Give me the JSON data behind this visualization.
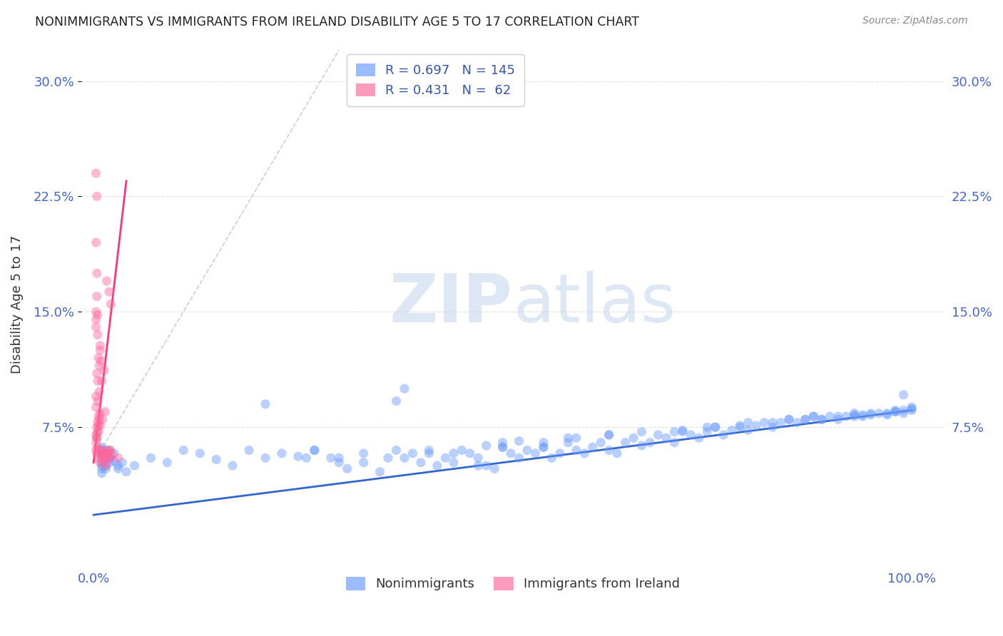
{
  "title": "NONIMMIGRANTS VS IMMIGRANTS FROM IRELAND DISABILITY AGE 5 TO 17 CORRELATION CHART",
  "source": "Source: ZipAtlas.com",
  "ylabel_label": "Disability Age 5 to 17",
  "ylim": [
    -0.015,
    0.325
  ],
  "xlim": [
    -0.015,
    1.04
  ],
  "blue_color": "#6699ff",
  "pink_color": "#ff6699",
  "blue_line_color": "#3366cc",
  "pink_line_color": "#ff3377",
  "grid_color": "#dddddd",
  "background_color": "#ffffff",
  "title_color": "#222222",
  "tick_label_color": "#4466cc",
  "legend_r_blue": "0.697",
  "legend_n_blue": "145",
  "legend_r_pink": "0.431",
  "legend_n_pink": "62",
  "blue_trend_x": [
    0.0,
    1.0
  ],
  "blue_trend_y": [
    0.018,
    0.086
  ],
  "pink_trend_x": [
    0.0,
    0.04
  ],
  "pink_trend_y": [
    0.052,
    0.235
  ],
  "pink_dashed_trend_x": [
    0.0,
    0.3
  ],
  "pink_dashed_trend_y": [
    0.052,
    0.32
  ],
  "blue_scatter_x": [
    0.01,
    0.01,
    0.01,
    0.01,
    0.01,
    0.01,
    0.01,
    0.01,
    0.015,
    0.015,
    0.015,
    0.015,
    0.02,
    0.02,
    0.02,
    0.025,
    0.025,
    0.03,
    0.03,
    0.035,
    0.04,
    0.05,
    0.07,
    0.09,
    0.11,
    0.13,
    0.15,
    0.17,
    0.19,
    0.21,
    0.23,
    0.25,
    0.27,
    0.29,
    0.31,
    0.33,
    0.35,
    0.37,
    0.38,
    0.4,
    0.41,
    0.42,
    0.43,
    0.44,
    0.45,
    0.46,
    0.47,
    0.48,
    0.49,
    0.5,
    0.51,
    0.52,
    0.53,
    0.54,
    0.55,
    0.56,
    0.57,
    0.58,
    0.59,
    0.6,
    0.61,
    0.62,
    0.63,
    0.64,
    0.65,
    0.66,
    0.67,
    0.68,
    0.69,
    0.7,
    0.71,
    0.72,
    0.73,
    0.74,
    0.75,
    0.76,
    0.77,
    0.78,
    0.79,
    0.8,
    0.81,
    0.82,
    0.83,
    0.84,
    0.85,
    0.86,
    0.87,
    0.88,
    0.89,
    0.9,
    0.91,
    0.92,
    0.93,
    0.94,
    0.95,
    0.96,
    0.97,
    0.98,
    0.99,
    1.0,
    0.38,
    0.5,
    0.99,
    0.37,
    0.21,
    0.3,
    0.44,
    0.47,
    0.55,
    0.26,
    0.27,
    0.3,
    0.33,
    0.36,
    0.39,
    0.41,
    0.48,
    0.52,
    0.55,
    0.59,
    0.63,
    0.67,
    0.72,
    0.76,
    0.79,
    0.83,
    0.87,
    0.91,
    0.95,
    0.98,
    1.0,
    0.5,
    0.63,
    0.75,
    0.85,
    0.93,
    0.98,
    1.0,
    0.58,
    0.71,
    0.8,
    0.89,
    0.94,
    0.97,
    0.99,
    0.88,
    0.93
  ],
  "blue_scatter_y": [
    0.058,
    0.062,
    0.055,
    0.06,
    0.05,
    0.048,
    0.045,
    0.052,
    0.055,
    0.06,
    0.05,
    0.048,
    0.055,
    0.06,
    0.052,
    0.058,
    0.053,
    0.05,
    0.048,
    0.052,
    0.046,
    0.05,
    0.055,
    0.052,
    0.06,
    0.058,
    0.054,
    0.05,
    0.06,
    0.055,
    0.058,
    0.056,
    0.06,
    0.055,
    0.048,
    0.052,
    0.046,
    0.06,
    0.055,
    0.052,
    0.058,
    0.05,
    0.055,
    0.052,
    0.06,
    0.058,
    0.055,
    0.05,
    0.048,
    0.062,
    0.058,
    0.055,
    0.06,
    0.058,
    0.062,
    0.055,
    0.058,
    0.065,
    0.06,
    0.058,
    0.062,
    0.065,
    0.06,
    0.058,
    0.065,
    0.068,
    0.063,
    0.065,
    0.07,
    0.068,
    0.065,
    0.072,
    0.07,
    0.068,
    0.072,
    0.075,
    0.07,
    0.073,
    0.075,
    0.073,
    0.076,
    0.078,
    0.075,
    0.078,
    0.08,
    0.078,
    0.08,
    0.082,
    0.08,
    0.082,
    0.08,
    0.082,
    0.083,
    0.082,
    0.083,
    0.084,
    0.083,
    0.085,
    0.084,
    0.086,
    0.1,
    0.062,
    0.096,
    0.092,
    0.09,
    0.055,
    0.058,
    0.05,
    0.062,
    0.055,
    0.06,
    0.052,
    0.058,
    0.055,
    0.058,
    0.06,
    0.063,
    0.066,
    0.065,
    0.068,
    0.07,
    0.072,
    0.073,
    0.075,
    0.076,
    0.078,
    0.08,
    0.082,
    0.084,
    0.086,
    0.088,
    0.065,
    0.07,
    0.075,
    0.08,
    0.082,
    0.085,
    0.087,
    0.068,
    0.072,
    0.078,
    0.08,
    0.083,
    0.084,
    0.086,
    0.082,
    0.084
  ],
  "pink_scatter_x": [
    0.003,
    0.004,
    0.005,
    0.006,
    0.007,
    0.008,
    0.009,
    0.01,
    0.011,
    0.012,
    0.013,
    0.014,
    0.015,
    0.016,
    0.017,
    0.018,
    0.019,
    0.02,
    0.021,
    0.022,
    0.003,
    0.004,
    0.005,
    0.006,
    0.007,
    0.008,
    0.009,
    0.003,
    0.004,
    0.005,
    0.006,
    0.003,
    0.004,
    0.005,
    0.003,
    0.004,
    0.003,
    0.004,
    0.003,
    0.005,
    0.007,
    0.01,
    0.013,
    0.016,
    0.019,
    0.021,
    0.003,
    0.004,
    0.006,
    0.008,
    0.011,
    0.014,
    0.003,
    0.005,
    0.008,
    0.003,
    0.004,
    0.005,
    0.006,
    0.007,
    0.008,
    0.03
  ],
  "pink_scatter_y": [
    0.06,
    0.058,
    0.062,
    0.055,
    0.06,
    0.052,
    0.058,
    0.06,
    0.055,
    0.058,
    0.052,
    0.055,
    0.05,
    0.058,
    0.06,
    0.055,
    0.058,
    0.06,
    0.055,
    0.058,
    0.095,
    0.11,
    0.105,
    0.12,
    0.115,
    0.128,
    0.118,
    0.07,
    0.075,
    0.078,
    0.082,
    0.15,
    0.16,
    0.148,
    0.195,
    0.175,
    0.24,
    0.225,
    0.088,
    0.092,
    0.098,
    0.105,
    0.112,
    0.17,
    0.163,
    0.155,
    0.065,
    0.068,
    0.072,
    0.076,
    0.08,
    0.085,
    0.14,
    0.135,
    0.125,
    0.145,
    0.068,
    0.072,
    0.076,
    0.08,
    0.084,
    0.055
  ]
}
